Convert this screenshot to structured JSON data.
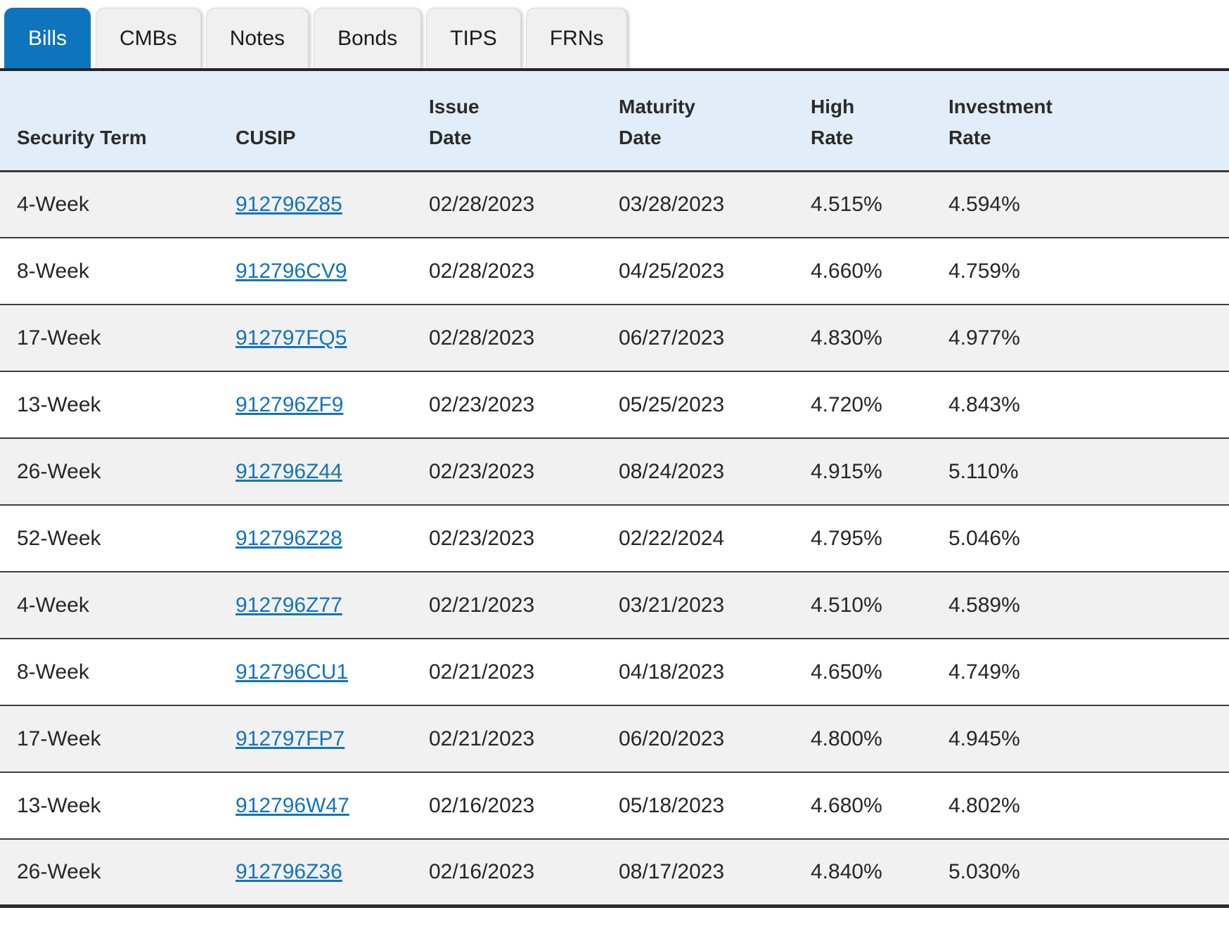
{
  "tabs": {
    "active": "Bills",
    "items": [
      {
        "label": "Bills"
      },
      {
        "label": "CMBs"
      },
      {
        "label": "Notes"
      },
      {
        "label": "Bonds"
      },
      {
        "label": "TIPS"
      },
      {
        "label": "FRNs"
      }
    ]
  },
  "table": {
    "columns": [
      {
        "id": "term",
        "label": "Security Term"
      },
      {
        "id": "cusip",
        "label": "CUSIP"
      },
      {
        "id": "issue_date",
        "label": "Issue\nDate"
      },
      {
        "id": "maturity_date",
        "label": "Maturity\nDate"
      },
      {
        "id": "high_rate",
        "label": "High\nRate"
      },
      {
        "id": "investment_rate",
        "label": "Investment\nRate"
      }
    ],
    "rows": [
      {
        "term": "4-Week",
        "cusip": "912796Z85",
        "issue_date": "02/28/2023",
        "maturity_date": "03/28/2023",
        "high_rate": "4.515%",
        "investment_rate": "4.594%"
      },
      {
        "term": "8-Week",
        "cusip": "912796CV9",
        "issue_date": "02/28/2023",
        "maturity_date": "04/25/2023",
        "high_rate": "4.660%",
        "investment_rate": "4.759%"
      },
      {
        "term": "17-Week",
        "cusip": "912797FQ5",
        "issue_date": "02/28/2023",
        "maturity_date": "06/27/2023",
        "high_rate": "4.830%",
        "investment_rate": "4.977%"
      },
      {
        "term": "13-Week",
        "cusip": "912796ZF9",
        "issue_date": "02/23/2023",
        "maturity_date": "05/25/2023",
        "high_rate": "4.720%",
        "investment_rate": "4.843%"
      },
      {
        "term": "26-Week",
        "cusip": "912796Z44",
        "issue_date": "02/23/2023",
        "maturity_date": "08/24/2023",
        "high_rate": "4.915%",
        "investment_rate": "5.110%"
      },
      {
        "term": "52-Week",
        "cusip": "912796Z28",
        "issue_date": "02/23/2023",
        "maturity_date": "02/22/2024",
        "high_rate": "4.795%",
        "investment_rate": "5.046%"
      },
      {
        "term": "4-Week",
        "cusip": "912796Z77",
        "issue_date": "02/21/2023",
        "maturity_date": "03/21/2023",
        "high_rate": "4.510%",
        "investment_rate": "4.589%"
      },
      {
        "term": "8-Week",
        "cusip": "912796CU1",
        "issue_date": "02/21/2023",
        "maturity_date": "04/18/2023",
        "high_rate": "4.650%",
        "investment_rate": "4.749%"
      },
      {
        "term": "17-Week",
        "cusip": "912797FP7",
        "issue_date": "02/21/2023",
        "maturity_date": "06/20/2023",
        "high_rate": "4.800%",
        "investment_rate": "4.945%"
      },
      {
        "term": "13-Week",
        "cusip": "912796W47",
        "issue_date": "02/16/2023",
        "maturity_date": "05/18/2023",
        "high_rate": "4.680%",
        "investment_rate": "4.802%"
      },
      {
        "term": "26-Week",
        "cusip": "912796Z36",
        "issue_date": "02/16/2023",
        "maturity_date": "08/17/2023",
        "high_rate": "4.840%",
        "investment_rate": "5.030%"
      }
    ]
  },
  "colors": {
    "accent_blue": "#0e74bd",
    "link_blue": "#1274bd",
    "header_bg": "#e1edf8",
    "row_alt_bg": "#f1f1f1",
    "row_bg": "#ffffff",
    "divider_dark": "#3d3d3d",
    "tab_inactive_bg": "#f0f0f0"
  }
}
